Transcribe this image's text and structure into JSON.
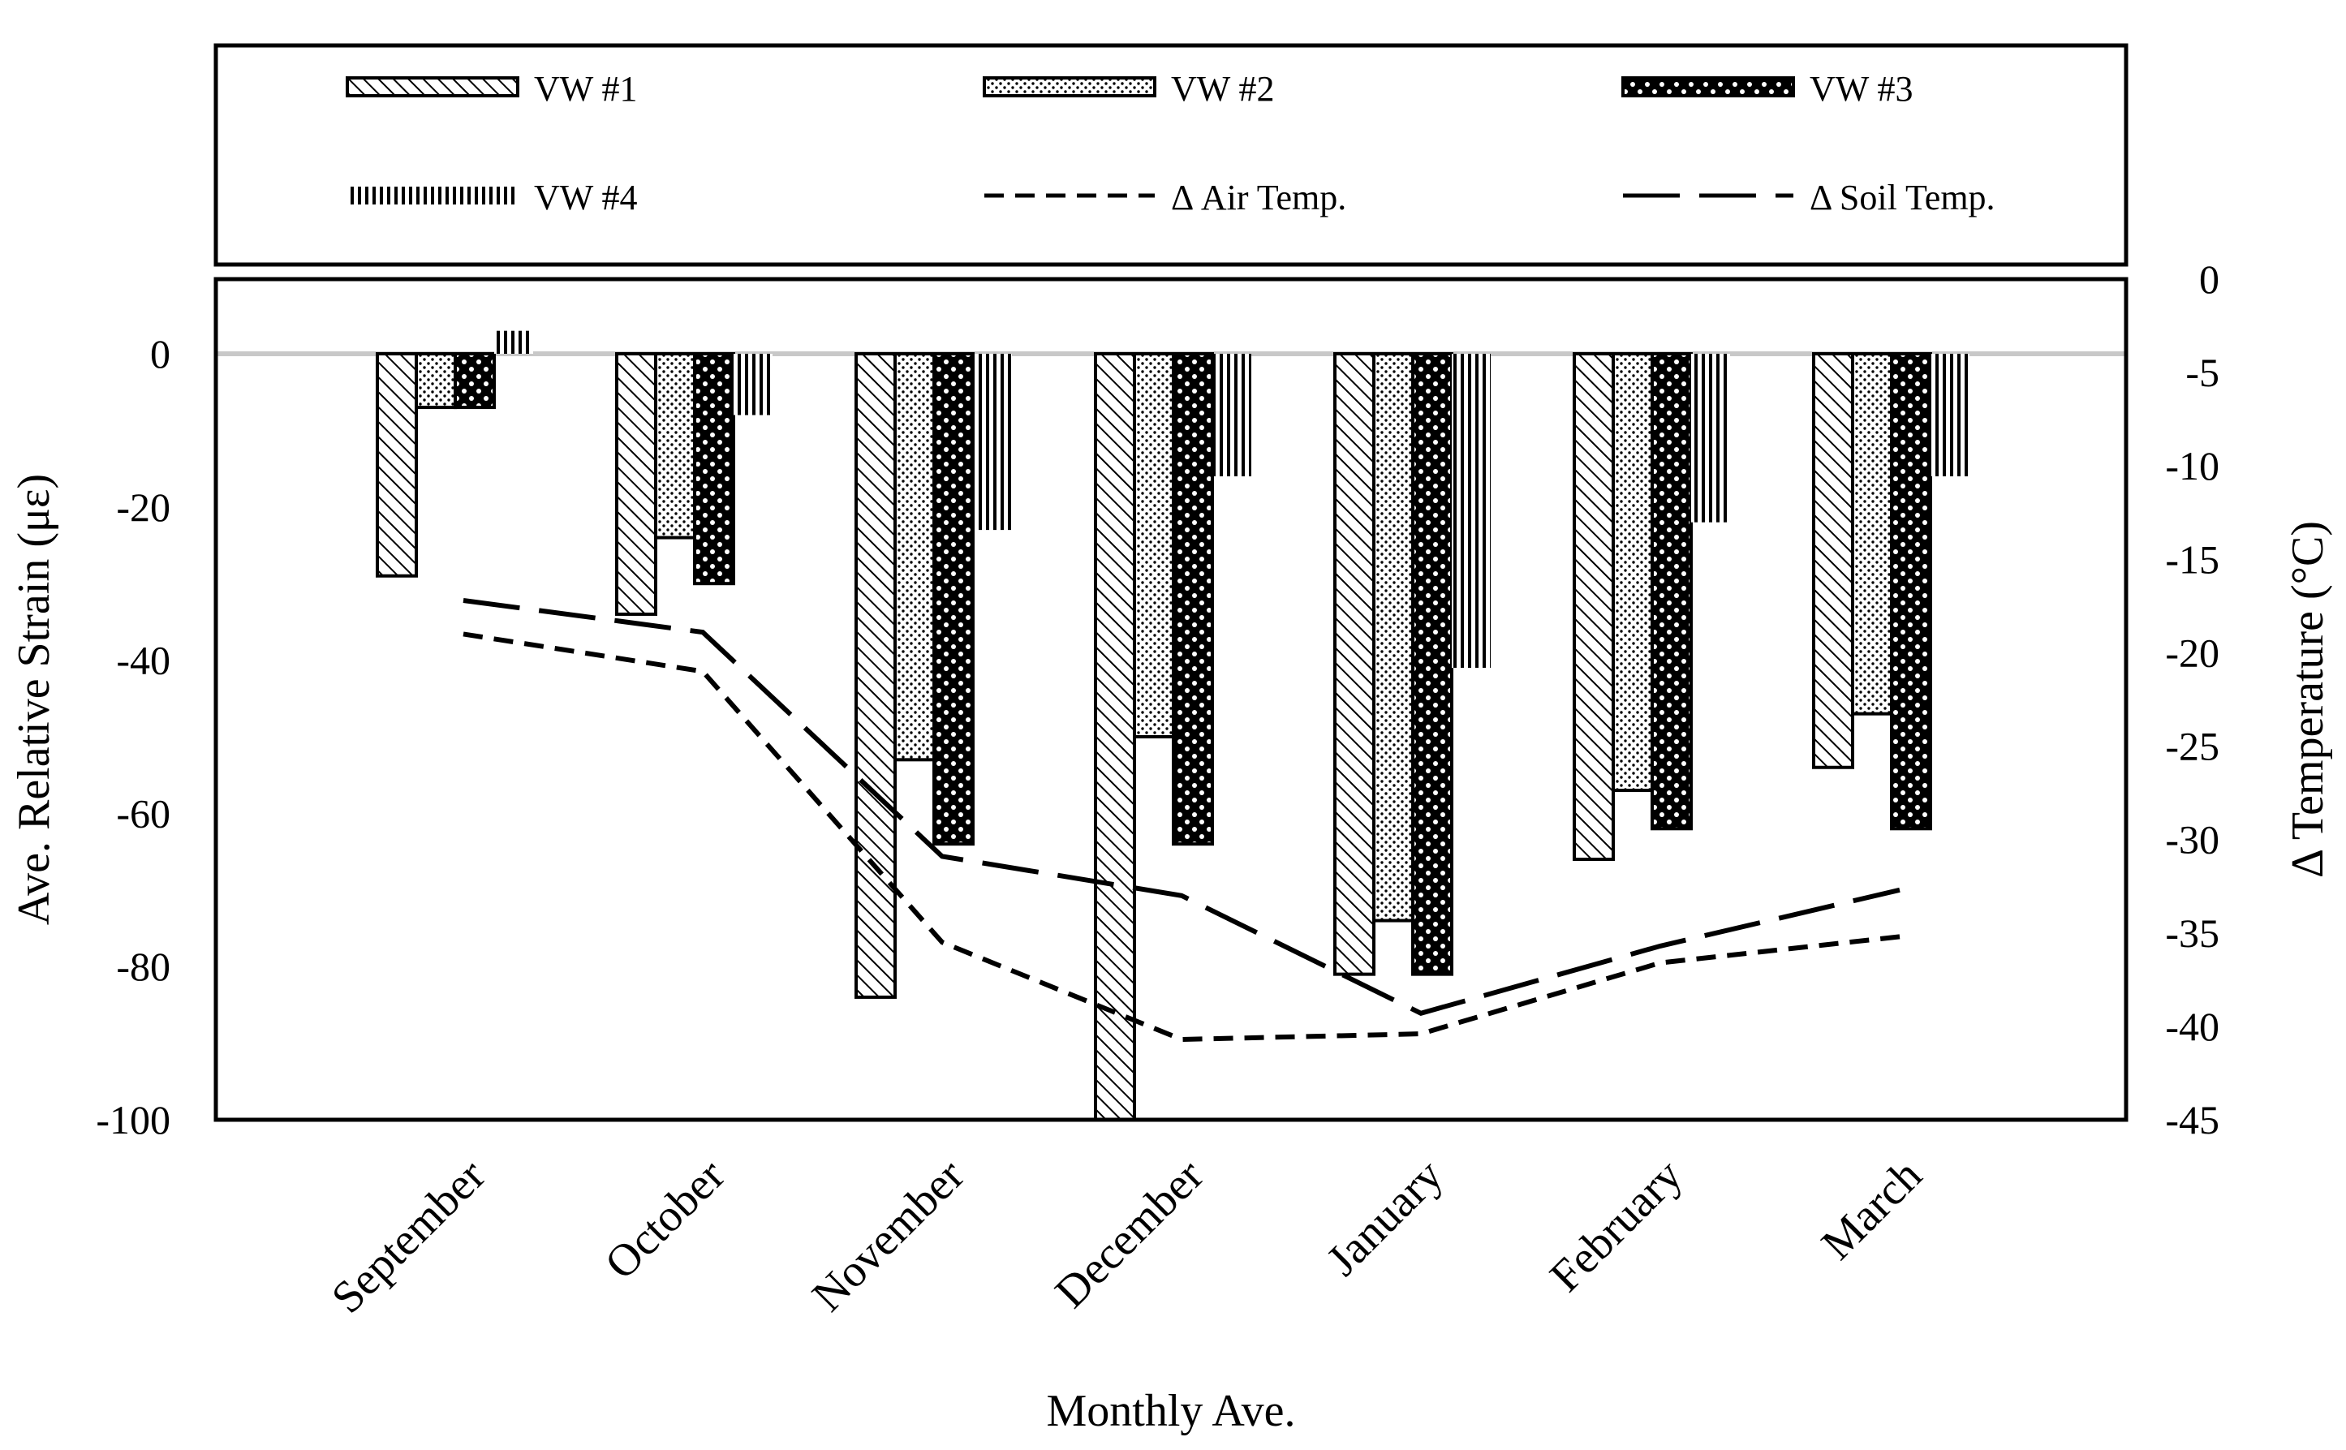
{
  "chart_data": {
    "type": "bar",
    "categories": [
      "September",
      "October",
      "November",
      "December",
      "January",
      "February",
      "March"
    ],
    "series": [
      {
        "name": "VW #1",
        "kind": "bar",
        "axis": "left",
        "pattern": "diagonal-hatch",
        "values": [
          -29,
          -34,
          -84,
          -101,
          -81,
          -66,
          -54
        ]
      },
      {
        "name": "VW #2",
        "kind": "bar",
        "axis": "left",
        "pattern": "dots",
        "values": [
          -7,
          -24,
          -53,
          -50,
          -74,
          -57,
          -47
        ]
      },
      {
        "name": "VW #3",
        "kind": "bar",
        "axis": "left",
        "pattern": "dark-dots",
        "values": [
          -7,
          -30,
          -64,
          -64,
          -81,
          -62,
          -62
        ]
      },
      {
        "name": "VW #4",
        "kind": "bar",
        "axis": "left",
        "pattern": "vertical-lines",
        "values": [
          3,
          -8,
          -23,
          -16,
          -41,
          -22,
          -16
        ]
      },
      {
        "name": "Δ Air Temp.",
        "kind": "line",
        "axis": "right",
        "dash": "short",
        "values": [
          -19,
          -21,
          -35.5,
          -40.7,
          -40.4,
          -36.6,
          -35.2
        ]
      },
      {
        "name": "Δ Soil Temp.",
        "kind": "line",
        "axis": "right",
        "dash": "long",
        "values": [
          -17.2,
          -18.9,
          -30.9,
          -33,
          -39.3,
          -35.7,
          -32.7
        ]
      }
    ],
    "xlabel": "Monthly Ave.",
    "ylabel": "Ave. Relative Strain (με)",
    "y2label": "Δ Temperature (°C)",
    "ylim": [
      -100,
      10
    ],
    "y2lim": [
      -45,
      0
    ],
    "yticks": [
      "0",
      "-20",
      "-40",
      "-60",
      "-80",
      "-100"
    ],
    "y2ticks": [
      "0",
      "-5",
      "-10",
      "-15",
      "-20",
      "-25",
      "-30",
      "-35",
      "-40",
      "-45"
    ],
    "legend_position": "top",
    "grid": false,
    "zero_line_color": "#c8c8c8"
  }
}
